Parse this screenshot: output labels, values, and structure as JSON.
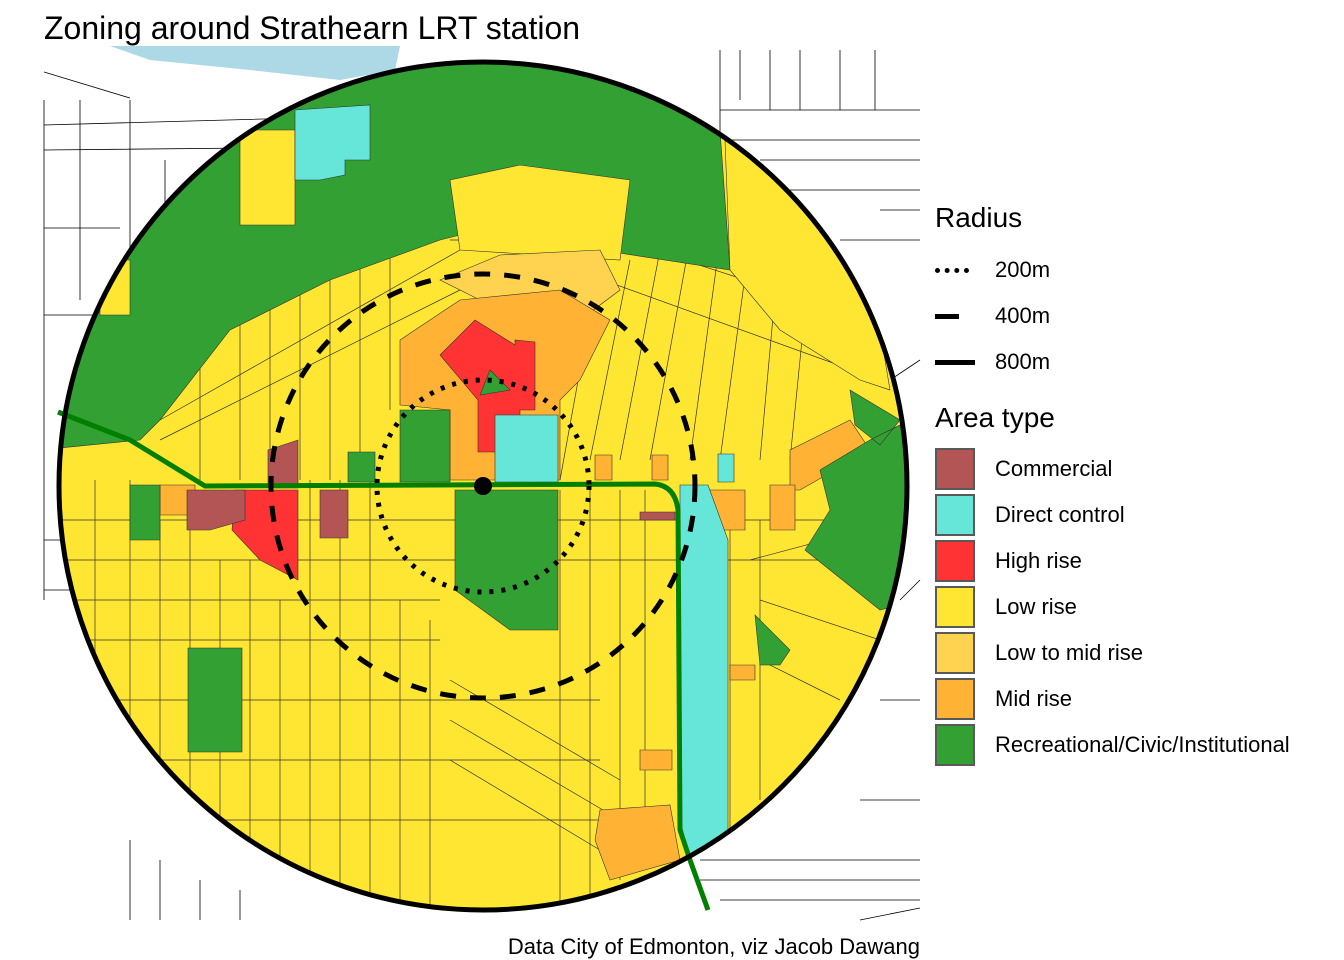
{
  "title": "Zoning around Strathearn LRT station",
  "caption": "Data City of Edmonton, viz Jacob Dawang",
  "legend": {
    "radius_title": "Radius",
    "radius_items": [
      {
        "label": "200m",
        "style": "dotted"
      },
      {
        "label": "400m",
        "style": "dashed"
      },
      {
        "label": "800m",
        "style": "solid"
      }
    ],
    "area_title": "Area type",
    "area_items": [
      {
        "label": "Commercial",
        "color": "#B35555"
      },
      {
        "label": "Direct control",
        "color": "#66E6D9"
      },
      {
        "label": "High rise",
        "color": "#FF3333"
      },
      {
        "label": "Low rise",
        "color": "#FFE633"
      },
      {
        "label": "Low to mid rise",
        "color": "#FFD34F"
      },
      {
        "label": "Mid rise",
        "color": "#FFB233"
      },
      {
        "label": "Recreational/Civic/Institutional",
        "color": "#33A033"
      }
    ]
  },
  "colors": {
    "lrt_line": "#008000",
    "river": "#ADD8E6",
    "station": "#000000"
  }
}
